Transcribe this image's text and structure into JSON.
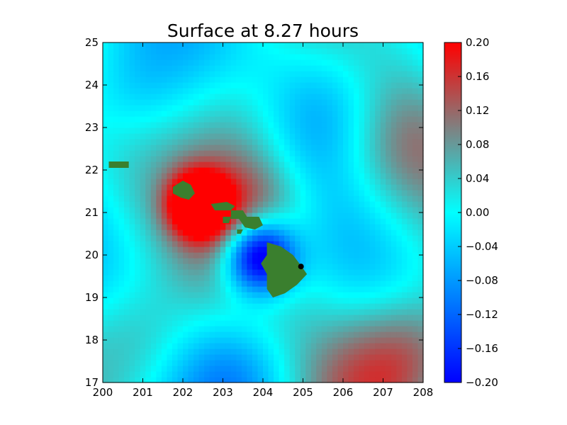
{
  "chart_data": {
    "type": "heatmap",
    "title": "Surface at 8.27 hours",
    "xlabel": "",
    "ylabel": "",
    "xlim": [
      200,
      208
    ],
    "ylim": [
      17,
      25
    ],
    "x_ticks": [
      "200",
      "201",
      "202",
      "203",
      "204",
      "205",
      "206",
      "207",
      "208"
    ],
    "y_ticks": [
      "17",
      "18",
      "19",
      "20",
      "21",
      "22",
      "23",
      "24",
      "25"
    ],
    "colorbar": {
      "range": [
        -0.2,
        0.2
      ],
      "tick_labels": [
        "0.20",
        "0.16",
        "0.12",
        "0.08",
        "0.04",
        "0.00",
        "−0.04",
        "−0.08",
        "−0.12",
        "−0.16",
        "−0.20"
      ],
      "tick_values": [
        0.2,
        0.16,
        0.12,
        0.08,
        0.04,
        0.0,
        -0.04,
        -0.08,
        -0.12,
        -0.16,
        -0.2
      ],
      "colors": [
        {
          "value": -0.2,
          "color": "#0000ff"
        },
        {
          "value": 0.0,
          "color": "#00ffff"
        },
        {
          "value": 0.1,
          "color": "#808080"
        },
        {
          "value": 0.2,
          "color": "#ff0000"
        }
      ]
    },
    "grid": false,
    "field_features": [
      {
        "kind": "positive-lobe",
        "lon": 202.4,
        "lat": 21.2,
        "amp": 0.3
      },
      {
        "kind": "positive-lobe",
        "lon": 203.6,
        "lat": 21.0,
        "amp": 0.16
      },
      {
        "kind": "negative-lobe",
        "lon": 203.9,
        "lat": 20.0,
        "amp": -0.34
      },
      {
        "kind": "negative-lobe",
        "lon": 203.5,
        "lat": 17.3,
        "amp": -0.1
      },
      {
        "kind": "negative-lobe",
        "lon": 205.8,
        "lat": 23.6,
        "amp": -0.08
      },
      {
        "kind": "negative-lobe",
        "lon": 200.6,
        "lat": 23.9,
        "amp": -0.08
      },
      {
        "kind": "positive-lobe",
        "lon": 200.8,
        "lat": 18.0,
        "amp": 0.1
      },
      {
        "kind": "positive-lobe",
        "lon": 207.8,
        "lat": 17.7,
        "amp": 0.14
      },
      {
        "kind": "positive-lobe",
        "lon": 206.6,
        "lat": 17.1,
        "amp": 0.08
      },
      {
        "kind": "positive-lobe",
        "lon": 203.4,
        "lat": 23.3,
        "amp": 0.08
      },
      {
        "kind": "positive-lobe",
        "lon": 207.6,
        "lat": 22.6,
        "amp": 0.06
      }
    ],
    "land_color": "#3a7f2e",
    "islands": [
      {
        "name": "",
        "polygon": [
          [
            200.15,
            22.2
          ],
          [
            200.65,
            22.2
          ],
          [
            200.65,
            22.05
          ],
          [
            200.15,
            22.05
          ]
        ]
      },
      {
        "name": "",
        "polygon": [
          [
            201.75,
            21.6
          ],
          [
            202.0,
            21.75
          ],
          [
            202.2,
            21.65
          ],
          [
            202.3,
            21.45
          ],
          [
            202.15,
            21.3
          ],
          [
            201.95,
            21.35
          ],
          [
            201.75,
            21.45
          ]
        ]
      },
      {
        "name": "",
        "polygon": [
          [
            202.7,
            21.2
          ],
          [
            203.1,
            21.25
          ],
          [
            203.3,
            21.15
          ],
          [
            203.2,
            21.05
          ],
          [
            202.8,
            21.05
          ]
        ]
      },
      {
        "name": "",
        "polygon": [
          [
            203.2,
            21.05
          ],
          [
            203.5,
            21.05
          ],
          [
            203.6,
            20.9
          ],
          [
            203.9,
            20.9
          ],
          [
            204.0,
            20.7
          ],
          [
            203.8,
            20.6
          ],
          [
            203.55,
            20.65
          ],
          [
            203.4,
            20.85
          ],
          [
            203.2,
            20.85
          ]
        ]
      },
      {
        "name": "",
        "polygon": [
          [
            203.0,
            20.9
          ],
          [
            203.2,
            20.9
          ],
          [
            203.15,
            20.75
          ],
          [
            203.0,
            20.75
          ]
        ]
      },
      {
        "name": "",
        "polygon": [
          [
            203.35,
            20.6
          ],
          [
            203.5,
            20.6
          ],
          [
            203.45,
            20.5
          ],
          [
            203.35,
            20.5
          ]
        ]
      },
      {
        "name": "",
        "polygon": [
          [
            204.1,
            20.3
          ],
          [
            204.45,
            20.2
          ],
          [
            204.75,
            20.0
          ],
          [
            204.95,
            19.75
          ],
          [
            205.1,
            19.55
          ],
          [
            204.85,
            19.3
          ],
          [
            204.55,
            19.1
          ],
          [
            204.25,
            19.0
          ],
          [
            204.1,
            19.2
          ],
          [
            204.1,
            19.55
          ],
          [
            203.95,
            19.8
          ],
          [
            204.1,
            20.0
          ]
        ]
      }
    ],
    "markers": [
      {
        "lon": 204.95,
        "lat": 19.73,
        "color": "#000000"
      }
    ]
  }
}
